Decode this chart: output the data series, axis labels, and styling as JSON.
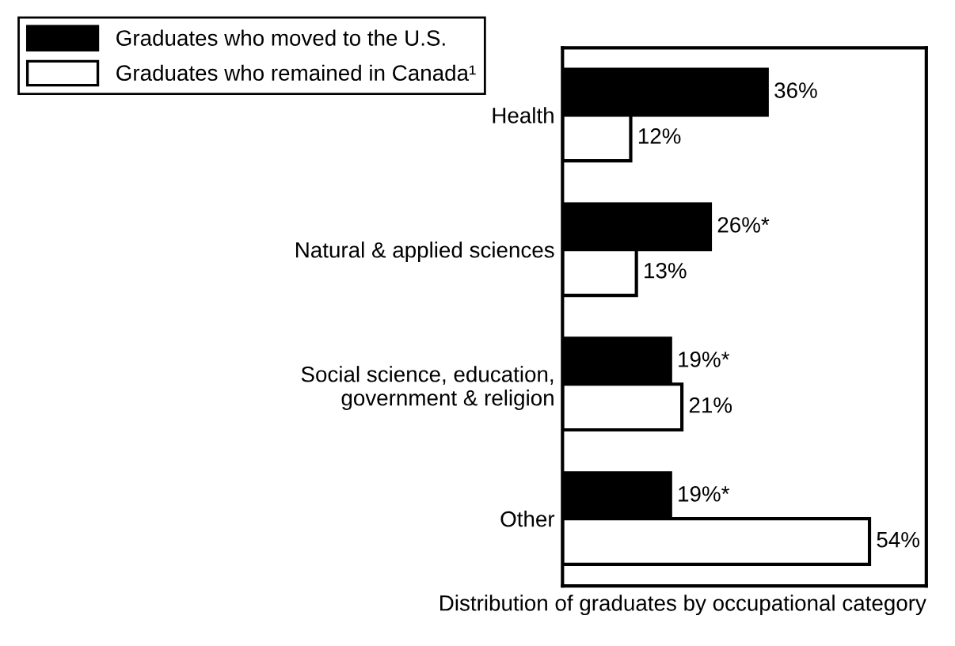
{
  "chart_data": {
    "type": "bar",
    "orientation": "horizontal",
    "categories": [
      "Health",
      "Natural & applied sciences",
      "Social science, education,\ngovernment & religion",
      "Other"
    ],
    "series": [
      {
        "name": "Graduates who moved to the U.S.",
        "color": "#000000",
        "values": [
          36,
          26,
          19,
          19
        ],
        "value_labels": [
          "36%",
          "26%*",
          "19%*",
          "19%*"
        ]
      },
      {
        "name": "Graduates who remained in Canada¹",
        "color": "#ffffff",
        "values": [
          12,
          13,
          21,
          54
        ],
        "value_labels": [
          "12%",
          "13%",
          "21%",
          "54%"
        ]
      }
    ],
    "xlabel": "Distribution of graduates by occupational category",
    "xlim": [
      0,
      64
    ],
    "tick_labels": "y",
    "legend": "top left",
    "grid": false
  }
}
